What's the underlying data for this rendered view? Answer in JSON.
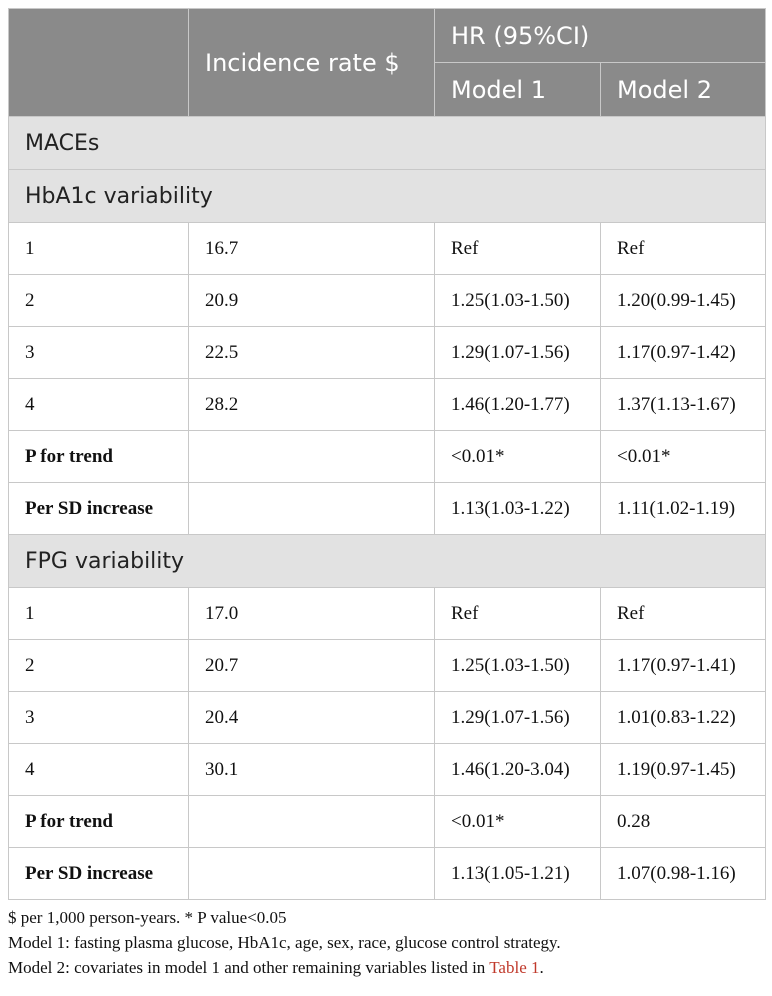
{
  "header": {
    "incidence": "Incidence rate $",
    "hr": "HR (95%CI)",
    "model1": "Model 1",
    "model2": "Model 2"
  },
  "top_section": "MACEs",
  "groups": [
    {
      "title": "HbA1c variability",
      "rows": [
        {
          "label": "1",
          "rate": "16.7",
          "m1": "Ref",
          "m2": "Ref",
          "bold": false
        },
        {
          "label": "2",
          "rate": "20.9",
          "m1": "1.25(1.03-1.50)",
          "m2": "1.20(0.99-1.45)",
          "bold": false
        },
        {
          "label": "3",
          "rate": "22.5",
          "m1": "1.29(1.07-1.56)",
          "m2": "1.17(0.97-1.42)",
          "bold": false
        },
        {
          "label": "4",
          "rate": "28.2",
          "m1": "1.46(1.20-1.77)",
          "m2": "1.37(1.13-1.67)",
          "bold": false
        },
        {
          "label": "P for trend",
          "rate": "",
          "m1": "<0.01*",
          "m2": "<0.01*",
          "bold": true
        },
        {
          "label": "Per SD increase",
          "rate": "",
          "m1": "1.13(1.03-1.22)",
          "m2": "1.11(1.02-1.19)",
          "bold": true
        }
      ]
    },
    {
      "title": "FPG variability",
      "rows": [
        {
          "label": "1",
          "rate": "17.0",
          "m1": "Ref",
          "m2": "Ref",
          "bold": false
        },
        {
          "label": "2",
          "rate": "20.7",
          "m1": "1.25(1.03-1.50)",
          "m2": "1.17(0.97-1.41)",
          "bold": false
        },
        {
          "label": "3",
          "rate": "20.4",
          "m1": "1.29(1.07-1.56)",
          "m2": "1.01(0.83-1.22)",
          "bold": false
        },
        {
          "label": "4",
          "rate": "30.1",
          "m1": "1.46(1.20-3.04)",
          "m2": "1.19(0.97-1.45)",
          "bold": false
        },
        {
          "label": "P for trend",
          "rate": "",
          "m1": "<0.01*",
          "m2": "0.28",
          "bold": true
        },
        {
          "label": "Per SD increase",
          "rate": "",
          "m1": "1.13(1.05-1.21)",
          "m2": "1.07(0.98-1.16)",
          "bold": true
        }
      ]
    }
  ],
  "notes": {
    "line1": "$ per 1,000 person-years. * P value<0.05",
    "line2": "Model 1: fasting plasma glucose, HbA1c, age, sex, race, glucose control strategy.",
    "line3_prefix": "Model 2: covariates in model 1 and other remaining variables listed in ",
    "line3_link": "Table 1",
    "line3_suffix": "."
  },
  "colors": {
    "header_bg": "#8a8a8a",
    "section_bg": "#e2e2e2",
    "link": "#c0392b"
  }
}
